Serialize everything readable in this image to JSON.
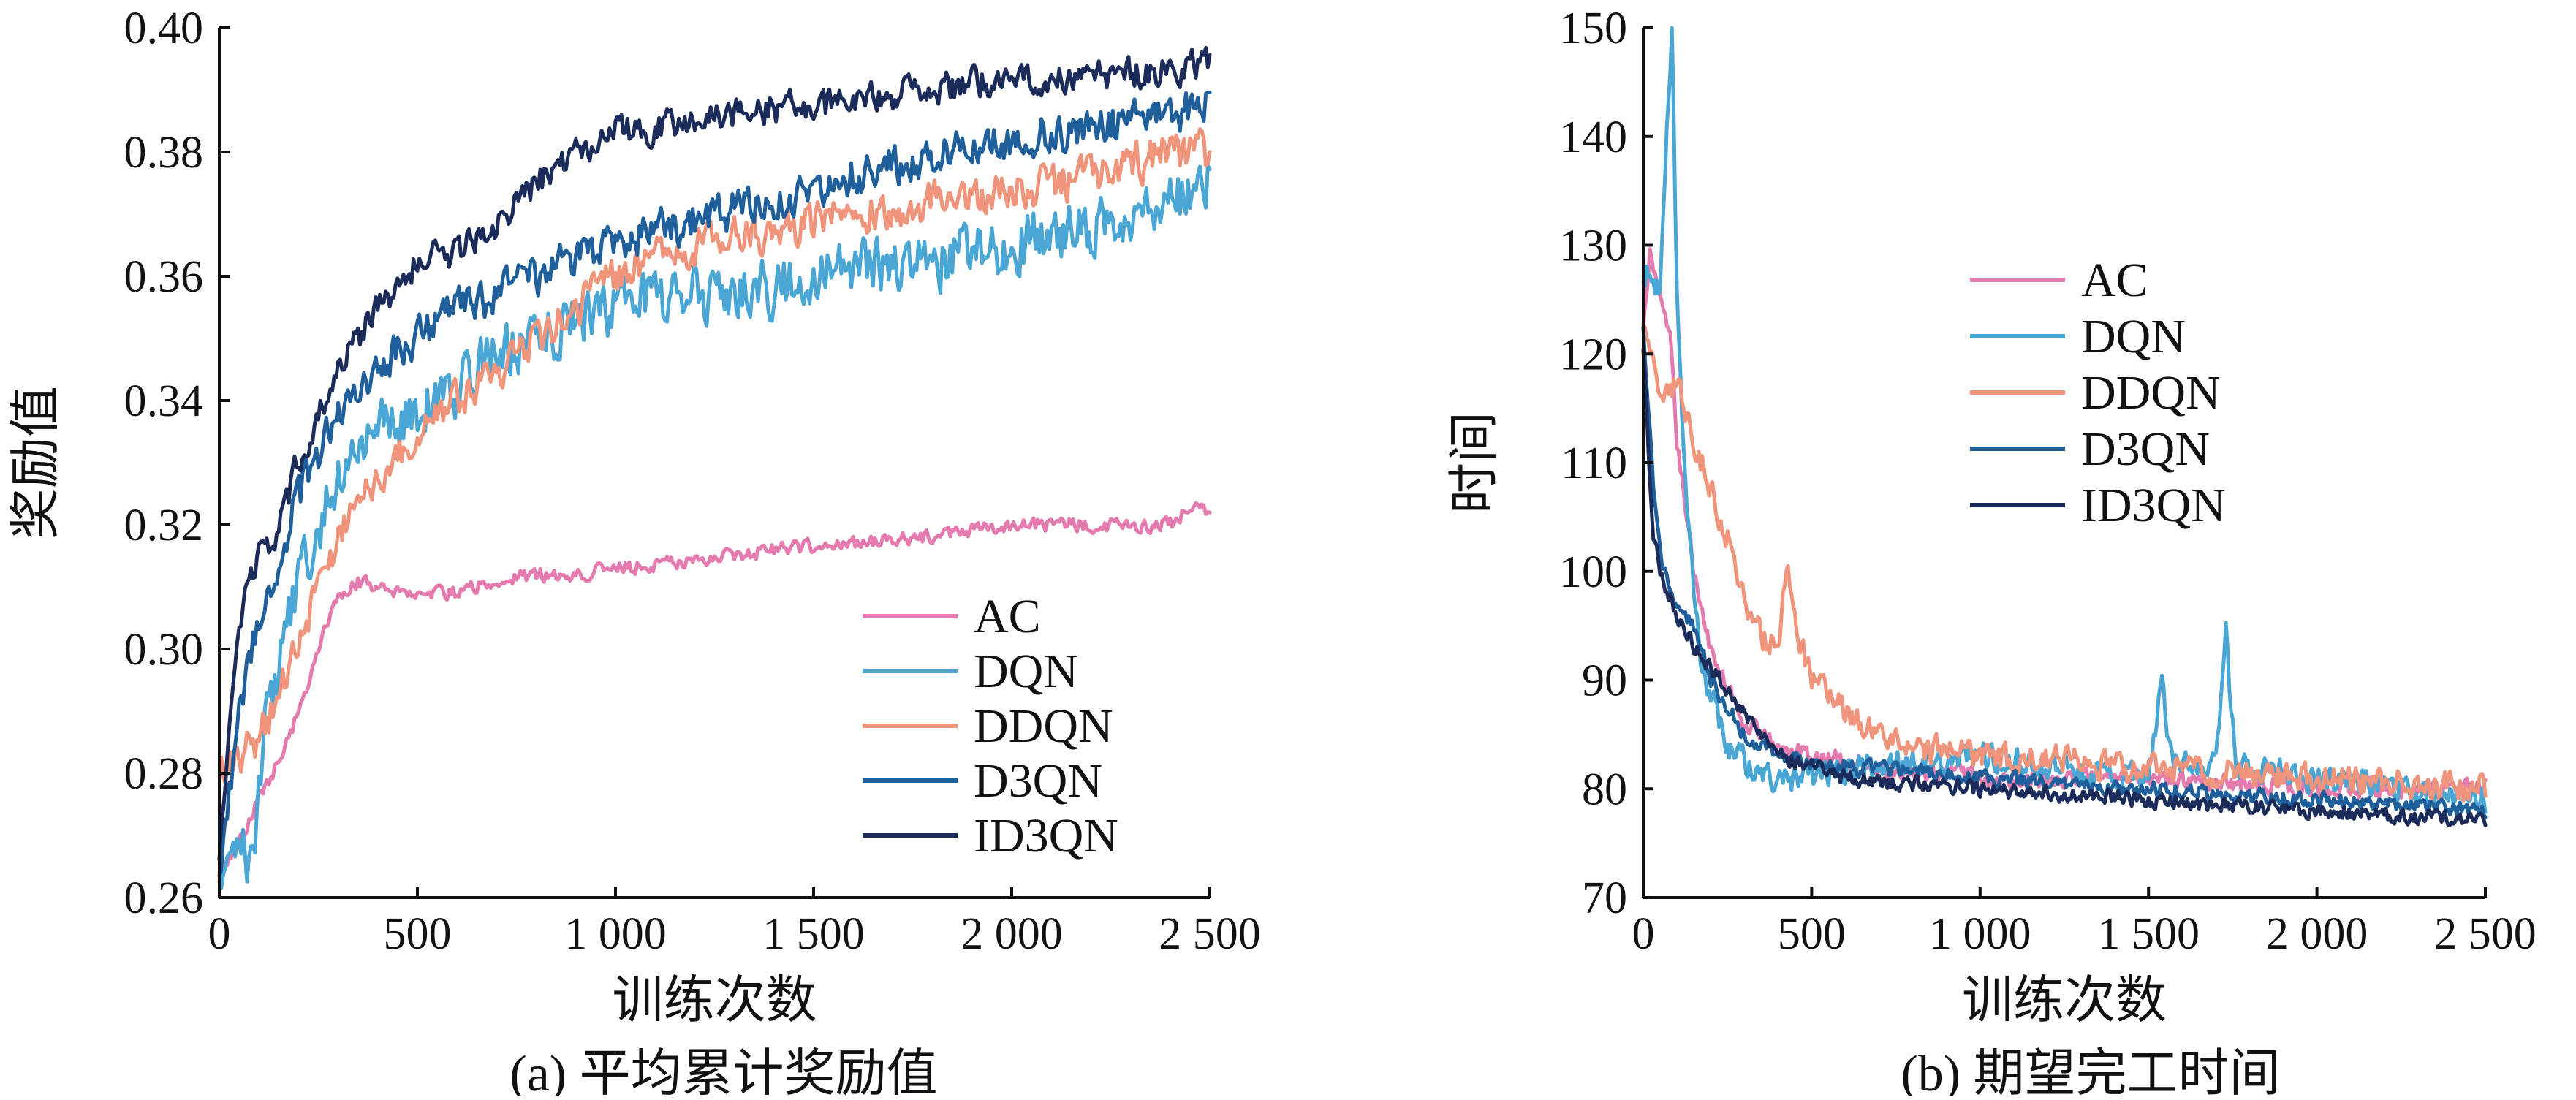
{
  "chart_data": [
    {
      "type": "line",
      "caption": "(a) 平均累计奖励值",
      "xlabel": "训练次数",
      "ylabel": "奖励值",
      "xlim": [
        0,
        2500
      ],
      "ylim": [
        0.26,
        0.4
      ],
      "xticks": [
        0,
        500,
        1000,
        1500,
        2000,
        2500
      ],
      "xtick_labels": [
        "0",
        "500",
        "1 000",
        "1 500",
        "2 000",
        "2 500"
      ],
      "yticks": [
        0.26,
        0.28,
        0.3,
        0.32,
        0.34,
        0.36,
        0.38,
        0.4
      ],
      "ytick_labels": [
        "0.26",
        "0.28",
        "0.30",
        "0.32",
        "0.34",
        "0.36",
        "0.38",
        "0.40"
      ],
      "grid": false,
      "legend_position": "bottom-right",
      "series": [
        {
          "name": "AC",
          "color": "#E47AAE",
          "noise": 0.0016,
          "x": [
            0,
            30,
            60,
            100,
            150,
            200,
            250,
            300,
            350,
            400,
            500,
            600,
            700,
            800,
            900,
            1000,
            1200,
            1400,
            1600,
            1800,
            2000,
            2200,
            2400,
            2450,
            2500
          ],
          "y": [
            0.262,
            0.267,
            0.27,
            0.276,
            0.282,
            0.29,
            0.3,
            0.308,
            0.311,
            0.31,
            0.309,
            0.309,
            0.311,
            0.312,
            0.312,
            0.313,
            0.314,
            0.316,
            0.317,
            0.318,
            0.32,
            0.32,
            0.32,
            0.323,
            0.322
          ]
        },
        {
          "name": "DQN",
          "color": "#4AA6D4",
          "noise": 0.0065,
          "x": [
            0,
            40,
            80,
            120,
            200,
            300,
            400,
            500,
            600,
            700,
            800,
            900,
            1000,
            1200,
            1400,
            1600,
            1800,
            2000,
            2200,
            2400,
            2500
          ],
          "y": [
            0.262,
            0.27,
            0.265,
            0.29,
            0.31,
            0.328,
            0.335,
            0.338,
            0.342,
            0.347,
            0.35,
            0.353,
            0.355,
            0.357,
            0.358,
            0.361,
            0.362,
            0.365,
            0.368,
            0.372,
            0.376
          ]
        },
        {
          "name": "DDQN",
          "color": "#F0957B",
          "noise": 0.0045,
          "x": [
            0,
            40,
            100,
            150,
            200,
            250,
            300,
            350,
            400,
            500,
            600,
            700,
            800,
            900,
            1000,
            1200,
            1400,
            1600,
            1800,
            2000,
            2200,
            2400,
            2500
          ],
          "y": [
            0.28,
            0.283,
            0.285,
            0.293,
            0.3,
            0.31,
            0.318,
            0.322,
            0.328,
            0.335,
            0.34,
            0.345,
            0.35,
            0.355,
            0.36,
            0.365,
            0.367,
            0.37,
            0.372,
            0.374,
            0.376,
            0.38,
            0.38
          ]
        },
        {
          "name": "D3QN",
          "color": "#1F5F9C",
          "noise": 0.0045,
          "x": [
            0,
            40,
            80,
            150,
            200,
            300,
            400,
            500,
            600,
            700,
            800,
            900,
            1000,
            1200,
            1400,
            1600,
            1800,
            2000,
            2200,
            2400,
            2500
          ],
          "y": [
            0.262,
            0.285,
            0.3,
            0.315,
            0.325,
            0.338,
            0.345,
            0.35,
            0.355,
            0.357,
            0.36,
            0.363,
            0.365,
            0.369,
            0.372,
            0.376,
            0.379,
            0.382,
            0.384,
            0.386,
            0.388
          ]
        },
        {
          "name": "ID3QN",
          "color": "#1B2B5A",
          "noise": 0.0035,
          "x": [
            0,
            40,
            80,
            150,
            200,
            300,
            400,
            500,
            600,
            700,
            800,
            900,
            1000,
            1200,
            1400,
            1600,
            1800,
            2000,
            2200,
            2400,
            2500
          ],
          "y": [
            0.265,
            0.3,
            0.312,
            0.32,
            0.33,
            0.345,
            0.355,
            0.362,
            0.364,
            0.368,
            0.375,
            0.38,
            0.383,
            0.385,
            0.387,
            0.388,
            0.39,
            0.392,
            0.392,
            0.393,
            0.395
          ]
        }
      ]
    },
    {
      "type": "line",
      "caption": "(b) 期望完工时间",
      "xlabel": "训练次数",
      "ylabel": "时间",
      "xlim": [
        0,
        2500
      ],
      "ylim": [
        70,
        150
      ],
      "xticks": [
        0,
        500,
        1000,
        1500,
        2000,
        2500
      ],
      "xtick_labels": [
        "0",
        "500",
        "1 000",
        "1 500",
        "2 000",
        "2 500"
      ],
      "yticks": [
        70,
        80,
        90,
        100,
        110,
        120,
        130,
        140,
        150
      ],
      "ytick_labels": [
        "70",
        "80",
        "90",
        "100",
        "110",
        "120",
        "130",
        "140",
        "150"
      ],
      "grid": false,
      "legend_position": "top-center",
      "series": [
        {
          "name": "AC",
          "color": "#E47AAE",
          "noise": 1.2,
          "x": [
            0,
            20,
            60,
            80,
            100,
            150,
            200,
            300,
            400,
            500,
            700,
            1000,
            1500,
            2000,
            2500
          ],
          "y": [
            122,
            129,
            125,
            122,
            112,
            100,
            93,
            86,
            84,
            83,
            82,
            81,
            81,
            80,
            80
          ]
        },
        {
          "name": "DQN",
          "color": "#4AA6D4",
          "noise": 1.8,
          "x": [
            0,
            20,
            50,
            70,
            85,
            100,
            130,
            170,
            250,
            350,
            500,
            700,
            1000,
            1200,
            1500,
            1540,
            1570,
            1700,
            1730,
            1760,
            2000,
            2500
          ],
          "y": [
            126,
            128,
            125,
            140,
            150,
            125,
            105,
            92,
            84,
            81,
            81,
            82,
            83,
            82,
            81,
            90,
            82,
            82,
            94,
            82,
            81,
            79
          ]
        },
        {
          "name": "DDQN",
          "color": "#F0957B",
          "noise": 1.8,
          "x": [
            0,
            50,
            100,
            150,
            200,
            250,
            300,
            350,
            400,
            430,
            460,
            500,
            600,
            800,
            1000,
            1500,
            2000,
            2500
          ],
          "y": [
            122,
            116,
            117,
            112,
            108,
            103,
            97,
            94,
            93,
            101,
            94,
            90,
            87,
            84,
            83,
            82,
            81,
            80
          ]
        },
        {
          "name": "D3QN",
          "color": "#1F5F9C",
          "noise": 1.0,
          "x": [
            0,
            30,
            60,
            100,
            150,
            200,
            300,
            400,
            600,
            1000,
            1500,
            2000,
            2500
          ],
          "y": [
            122,
            108,
            100,
            97,
            95,
            90,
            85,
            83,
            82,
            81,
            80,
            79,
            78
          ]
        },
        {
          "name": "ID3QN",
          "color": "#1B2B5A",
          "noise": 1.0,
          "x": [
            0,
            30,
            60,
            100,
            150,
            200,
            300,
            400,
            600,
            1000,
            1500,
            2000,
            2500
          ],
          "y": [
            120,
            103,
            99,
            96,
            93,
            91,
            87,
            83,
            81,
            80,
            79,
            78,
            77
          ]
        }
      ]
    }
  ]
}
